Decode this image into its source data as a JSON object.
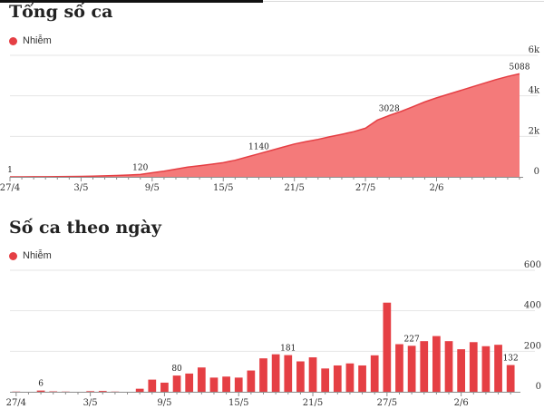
{
  "colors": {
    "accent": "#e53f44",
    "area_fill": "#f47a7a",
    "area_line": "#e53f44",
    "grid": "#e6e6e6",
    "axis": "#8c8c8c"
  },
  "chart_data": [
    {
      "type": "area",
      "title": "Tổng số ca",
      "legend": {
        "position": "top-left",
        "entries": [
          "Nhiễm"
        ]
      },
      "series": [
        {
          "name": "Nhiễm",
          "values": [
            1,
            2,
            5,
            8,
            12,
            18,
            25,
            35,
            50,
            70,
            90,
            120,
            200,
            280,
            380,
            480,
            550,
            620,
            700,
            820,
            980,
            1140,
            1300,
            1460,
            1620,
            1740,
            1850,
            1980,
            2100,
            2230,
            2400,
            2800,
            3028,
            3230,
            3460,
            3700,
            3900,
            4080,
            4260,
            4440,
            4620,
            4800,
            4956,
            5088
          ]
        }
      ],
      "categories": [
        "27/4",
        "28/4",
        "29/4",
        "30/4",
        "1/5",
        "2/5",
        "3/5",
        "4/5",
        "5/5",
        "6/5",
        "7/5",
        "8/5",
        "9/5",
        "10/5",
        "11/5",
        "12/5",
        "13/5",
        "14/5",
        "15/5",
        "16/5",
        "17/5",
        "18/5",
        "19/5",
        "20/5",
        "21/5",
        "22/5",
        "23/5",
        "24/5",
        "25/5",
        "26/5",
        "27/5",
        "28/5",
        "29/5",
        "30/5",
        "31/5",
        "1/6",
        "2/6",
        "3/6",
        "4/6",
        "5/6",
        "6/6",
        "7/6",
        "8/6",
        "9/6"
      ],
      "xtick_labels": [
        "27/4",
        "3/5",
        "9/5",
        "15/5",
        "21/5",
        "27/5",
        "2/6"
      ],
      "yticks": [
        0,
        2000,
        4000,
        6000
      ],
      "ytick_labels": [
        "0",
        "2k",
        "4k",
        "6k"
      ],
      "ylim": [
        0,
        6000
      ],
      "grid": true,
      "data_labels": [
        {
          "index": 0,
          "text": "1"
        },
        {
          "index": 11,
          "text": "120"
        },
        {
          "index": 21,
          "text": "1140"
        },
        {
          "index": 32,
          "text": "3028"
        },
        {
          "index": 43,
          "text": "5088"
        }
      ]
    },
    {
      "type": "bar",
      "title": "Số ca theo ngày",
      "legend": {
        "position": "top-left",
        "entries": [
          "Nhiễm"
        ]
      },
      "series": [
        {
          "name": "Nhiễm",
          "values": [
            1,
            0,
            6,
            2,
            1,
            0,
            3,
            4,
            1,
            0,
            15,
            60,
            45,
            80,
            90,
            120,
            70,
            75,
            70,
            105,
            165,
            185,
            181,
            150,
            170,
            115,
            130,
            140,
            130,
            180,
            440,
            235,
            227,
            250,
            275,
            250,
            210,
            245,
            225,
            232,
            132
          ]
        }
      ],
      "categories": [
        "27/4",
        "28/4",
        "29/4",
        "30/4",
        "1/5",
        "2/5",
        "3/5",
        "4/5",
        "5/5",
        "6/5",
        "7/5",
        "8/5",
        "9/5",
        "10/5",
        "11/5",
        "12/5",
        "13/5",
        "14/5",
        "15/5",
        "16/5",
        "17/5",
        "18/5",
        "19/5",
        "20/5",
        "21/5",
        "22/5",
        "23/5",
        "24/5",
        "25/5",
        "26/5",
        "27/5",
        "28/5",
        "29/5",
        "30/5",
        "31/5",
        "1/6",
        "2/6",
        "3/6",
        "4/6",
        "5/6",
        "6/6"
      ],
      "xtick_labels": [
        "27/4",
        "3/5",
        "9/5",
        "15/5",
        "21/5",
        "27/5",
        "2/6"
      ],
      "yticks": [
        0,
        200,
        400,
        600
      ],
      "ytick_labels": [
        "0",
        "200",
        "400",
        "600"
      ],
      "ylim": [
        0,
        600
      ],
      "grid": true,
      "data_labels": [
        {
          "index": 2,
          "text": "6"
        },
        {
          "index": 13,
          "text": "80"
        },
        {
          "index": 22,
          "text": "181"
        },
        {
          "index": 32,
          "text": "227"
        },
        {
          "index": 40,
          "text": "132"
        }
      ]
    }
  ]
}
